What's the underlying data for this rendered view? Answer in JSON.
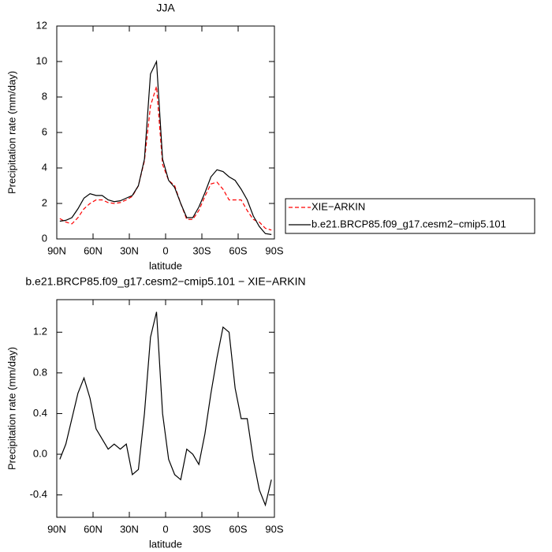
{
  "chart_data": [
    {
      "type": "line",
      "title": "JJA",
      "xlabel": "latitude",
      "ylabel": "Precipitation rate (mm/day)",
      "x": [
        87.5,
        82.5,
        77.5,
        72.5,
        67.5,
        62.5,
        57.5,
        52.5,
        47.5,
        42.5,
        37.5,
        32.5,
        27.5,
        22.5,
        17.5,
        12.5,
        7.5,
        2.5,
        -2.5,
        -7.5,
        -12.5,
        -17.5,
        -22.5,
        -27.5,
        -32.5,
        -37.5,
        -42.5,
        -47.5,
        -52.5,
        -57.5,
        -62.5,
        -67.5,
        -72.5,
        -77.5,
        -82.5,
        -87.5
      ],
      "series": [
        {
          "name": "XIE−ARKIN",
          "color": "#ff0000",
          "dash": true,
          "values": [
            1.15,
            0.95,
            0.85,
            1.2,
            1.7,
            2.0,
            2.2,
            2.2,
            2.05,
            2.0,
            2.05,
            2.2,
            2.4,
            3.0,
            4.4,
            7.5,
            8.6,
            4.2,
            3.3,
            3.0,
            2.0,
            1.1,
            1.1,
            1.6,
            2.4,
            3.1,
            3.2,
            2.8,
            2.2,
            2.2,
            2.2,
            1.6,
            1.1,
            0.95,
            0.6,
            0.5
          ]
        },
        {
          "name": "b.e21.BRCP85.f09_g17.cesm2−cmip5.101",
          "color": "#000000",
          "dash": false,
          "values": [
            1.0,
            1.05,
            1.2,
            1.7,
            2.3,
            2.55,
            2.45,
            2.45,
            2.2,
            2.1,
            2.15,
            2.3,
            2.45,
            3.0,
            4.5,
            9.3,
            10.0,
            4.5,
            3.3,
            2.9,
            2.0,
            1.2,
            1.2,
            1.8,
            2.6,
            3.5,
            3.9,
            3.8,
            3.5,
            3.3,
            2.8,
            2.2,
            1.3,
            0.7,
            0.3,
            0.25
          ]
        }
      ],
      "xlim": [
        90,
        -90
      ],
      "xticks": [
        {
          "value": 90,
          "label": "90N"
        },
        {
          "value": 60,
          "label": "60N"
        },
        {
          "value": 30,
          "label": "30N"
        },
        0,
        {
          "value": -30,
          "label": "30S"
        },
        {
          "value": -60,
          "label": "60S"
        },
        {
          "value": -90,
          "label": "90S"
        }
      ],
      "ylim": [
        0,
        12
      ],
      "yticks": [
        0,
        2,
        4,
        6,
        8,
        10,
        12
      ],
      "legend": "right"
    },
    {
      "type": "line",
      "title": "b.e21.BRCP85.f09_g17.cesm2−cmip5.101 − XIE−ARKIN",
      "xlabel": "latitude",
      "ylabel": "Precipitation rate (mm/day)",
      "x": [
        87.5,
        82.5,
        77.5,
        72.5,
        67.5,
        62.5,
        57.5,
        52.5,
        47.5,
        42.5,
        37.5,
        32.5,
        27.5,
        22.5,
        17.5,
        12.5,
        7.5,
        2.5,
        -2.5,
        -7.5,
        -12.5,
        -17.5,
        -22.5,
        -27.5,
        -32.5,
        -37.5,
        -42.5,
        -47.5,
        -52.5,
        -57.5,
        -62.5,
        -67.5,
        -72.5,
        -77.5,
        -82.5,
        -87.5
      ],
      "series": [
        {
          "color": "#000000",
          "dash": false,
          "values": [
            -0.05,
            0.1,
            0.35,
            0.6,
            0.75,
            0.55,
            0.25,
            0.15,
            0.05,
            0.1,
            0.05,
            0.1,
            -0.2,
            -0.15,
            0.4,
            1.15,
            1.4,
            0.4,
            -0.05,
            -0.2,
            -0.25,
            0.05,
            0.0,
            -0.1,
            0.2,
            0.6,
            0.95,
            1.25,
            1.2,
            0.65,
            0.35,
            0.35,
            -0.05,
            -0.35,
            -0.5,
            -0.25
          ]
        }
      ],
      "xlim": [
        90,
        -90
      ],
      "xticks": [
        {
          "value": 90,
          "label": "90N"
        },
        {
          "value": 60,
          "label": "60N"
        },
        {
          "value": 30,
          "label": "30N"
        },
        0,
        {
          "value": -30,
          "label": "30S"
        },
        {
          "value": -60,
          "label": "60S"
        },
        {
          "value": -90,
          "label": "90S"
        }
      ],
      "ylim": [
        -0.62,
        1.52
      ],
      "yticks": [
        -0.4,
        {
          "value": 0,
          "label": "0.0"
        },
        0.4,
        0.8,
        1.2
      ]
    }
  ]
}
